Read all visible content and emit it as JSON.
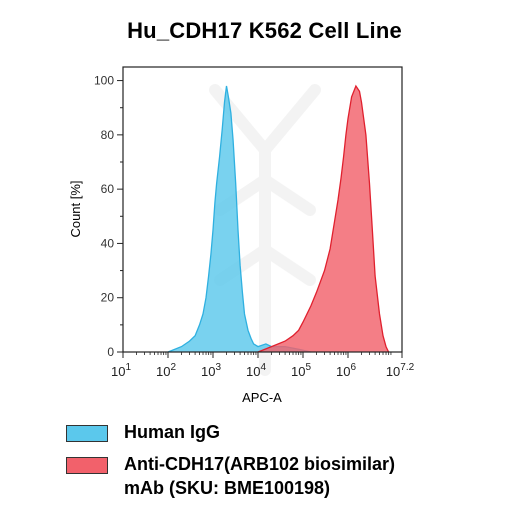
{
  "chart_data": {
    "type": "area",
    "title": "Hu_CDH17 K562 Cell Line",
    "xlabel": "APC-A",
    "ylabel": "Count [%]",
    "x_scale": "log",
    "xlim": [
      10,
      15848932
    ],
    "ylim": [
      0,
      105
    ],
    "x_ticks": [
      {
        "value": 10,
        "base": "10",
        "exp": "1"
      },
      {
        "value": 100,
        "base": "10",
        "exp": "2"
      },
      {
        "value": 1000,
        "base": "10",
        "exp": "3"
      },
      {
        "value": 10000,
        "base": "10",
        "exp": "4"
      },
      {
        "value": 100000,
        "base": "10",
        "exp": "5"
      },
      {
        "value": 1000000,
        "base": "10",
        "exp": "6"
      },
      {
        "value": 15848932,
        "base": "10",
        "exp": "7.2"
      }
    ],
    "y_ticks": [
      "0",
      "20",
      "40",
      "60",
      "80",
      "100"
    ],
    "series": [
      {
        "name": "Human IgG",
        "color": "#5bc8ec",
        "stroke": "#2fb0e0",
        "x": [
          100,
          200,
          300,
          400,
          500,
          600,
          700,
          800,
          900,
          1000,
          1100,
          1200,
          1400,
          1600,
          1800,
          2000,
          2200,
          2500,
          2800,
          3200,
          3600,
          4000,
          4500,
          5000,
          6000,
          7000,
          8000,
          10000,
          15000,
          20000,
          40000,
          80000,
          150000
        ],
        "values": [
          0,
          2,
          4,
          6,
          10,
          14,
          20,
          28,
          36,
          45,
          55,
          62,
          72,
          82,
          92,
          98,
          94,
          88,
          78,
          62,
          45,
          32,
          22,
          14,
          8,
          5,
          3,
          2,
          3,
          2,
          2,
          1,
          0
        ]
      },
      {
        "name": "Anti-CDH17(ARB102 biosimilar) mAb (SKU: BME100198)",
        "color": "#f2616b",
        "stroke": "#e0202e",
        "x": [
          10000,
          20000,
          40000,
          60000,
          80000,
          100000,
          150000,
          200000,
          300000,
          400000,
          500000,
          600000,
          700000,
          800000,
          900000,
          1000000,
          1200000,
          1500000,
          1800000,
          2000000,
          2500000,
          3000000,
          3500000,
          4000000,
          5000000,
          6000000,
          7000000,
          8000000
        ],
        "values": [
          0,
          2,
          4,
          6,
          8,
          11,
          17,
          22,
          30,
          38,
          48,
          56,
          64,
          72,
          80,
          86,
          94,
          98,
          96,
          92,
          80,
          62,
          44,
          28,
          14,
          6,
          2,
          0
        ]
      }
    ]
  },
  "legend": {
    "items": [
      {
        "label": "Human IgG",
        "color": "#5bc8ec"
      },
      {
        "label": "Anti-CDH17(ARB102 biosimilar)",
        "label2": "mAb (SKU: BME100198)",
        "color": "#f2616b"
      }
    ]
  }
}
